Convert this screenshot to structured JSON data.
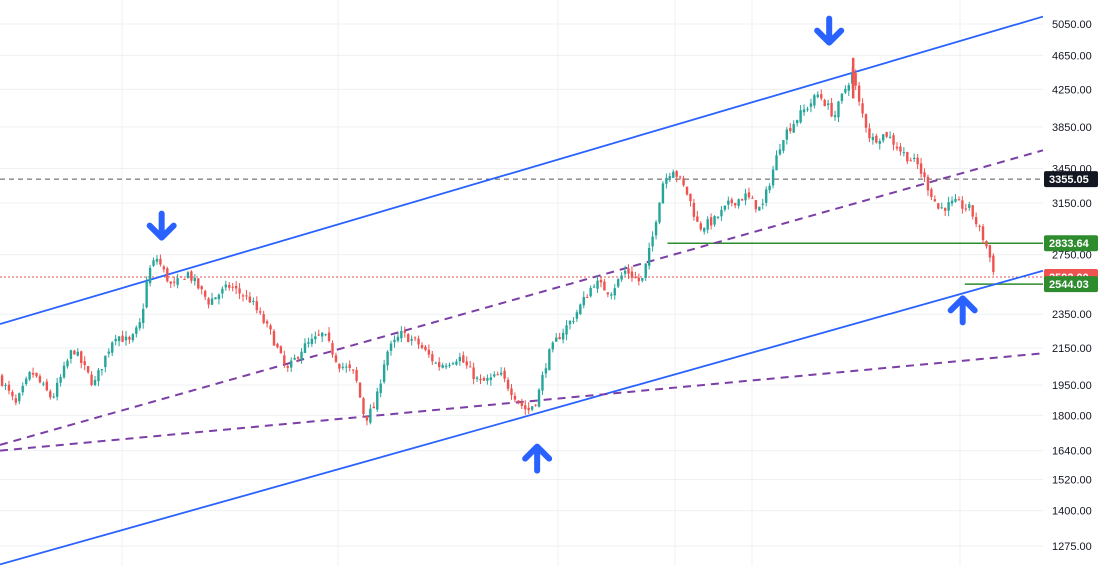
{
  "chart_data": {
    "type": "candlestick",
    "title": "",
    "xlabel": "",
    "ylabel": "",
    "y_scale": "log",
    "ylim": [
      1210,
      5380
    ],
    "grid": true,
    "x": [
      0,
      100
    ],
    "y_ticks": [
      5050,
      4650,
      4250,
      3850,
      3450,
      3150,
      2750,
      2350,
      2150,
      1950,
      1800,
      1640,
      1520,
      1400,
      1275
    ],
    "y_tick_labels": [
      "5050.00",
      "4650.00",
      "4250.00",
      "3850.00",
      "3450.00",
      "3150.00",
      "2750.00",
      "2350.00",
      "2150.00",
      "1950.00",
      "1800.00",
      "1640.00",
      "1520.00",
      "1400.00",
      "1275.00"
    ],
    "price_path": [
      [
        0,
        1990
      ],
      [
        1.5,
        1850
      ],
      [
        3,
        2020
      ],
      [
        5,
        1880
      ],
      [
        7,
        2150
      ],
      [
        9,
        1950
      ],
      [
        11,
        2230
      ],
      [
        12.5,
        2180
      ],
      [
        13.5,
        2300
      ],
      [
        14.2,
        2620
      ],
      [
        15,
        2730
      ],
      [
        16.5,
        2520
      ],
      [
        18,
        2620
      ],
      [
        20,
        2430
      ],
      [
        22,
        2530
      ],
      [
        24,
        2440
      ],
      [
        26,
        2230
      ],
      [
        27.5,
        2020
      ],
      [
        29,
        2150
      ],
      [
        31,
        2230
      ],
      [
        32.5,
        2060
      ],
      [
        34,
        2010
      ],
      [
        35,
        1780
      ],
      [
        36,
        1850
      ],
      [
        37,
        2120
      ],
      [
        38.5,
        2230
      ],
      [
        40,
        2180
      ],
      [
        42,
        2050
      ],
      [
        44,
        2100
      ],
      [
        46,
        1960
      ],
      [
        48,
        2000
      ],
      [
        50,
        1850
      ],
      [
        50.6,
        1820
      ],
      [
        51.5,
        1880
      ],
      [
        52.5,
        2100
      ],
      [
        53.5,
        2210
      ],
      [
        55,
        2330
      ],
      [
        57,
        2560
      ],
      [
        58.5,
        2490
      ],
      [
        60,
        2640
      ],
      [
        61.5,
        2550
      ],
      [
        62.5,
        2850
      ],
      [
        63.5,
        3320
      ],
      [
        64.5,
        3460
      ],
      [
        66,
        3210
      ],
      [
        67,
        2950
      ],
      [
        68.5,
        3010
      ],
      [
        70,
        3150
      ],
      [
        71.5,
        3210
      ],
      [
        73,
        3090
      ],
      [
        74,
        3400
      ],
      [
        75,
        3750
      ],
      [
        76.5,
        3950
      ],
      [
        78.5,
        4200
      ],
      [
        80,
        3960
      ],
      [
        81,
        4250
      ],
      [
        81.8,
        4450
      ],
      [
        82.2,
        4150
      ],
      [
        83.5,
        3720
      ],
      [
        85,
        3780
      ],
      [
        86.5,
        3600
      ],
      [
        88,
        3480
      ],
      [
        90,
        3100
      ],
      [
        91.5,
        3150
      ],
      [
        93,
        3100
      ],
      [
        94.5,
        2830
      ],
      [
        95.5,
        2590
      ]
    ],
    "series": [
      {
        "name": "",
        "style": "solid",
        "color": "#2962ff",
        "points": [
          [
            0,
            2290
          ],
          [
            100,
            5150
          ]
        ]
      },
      {
        "name": "",
        "style": "solid",
        "color": "#2962ff",
        "points": [
          [
            0,
            1215
          ],
          [
            100,
            2635
          ]
        ]
      },
      {
        "name": "",
        "style": "dashed",
        "color": "#7b3fa6",
        "points": [
          [
            0,
            1665
          ],
          [
            100,
            3620
          ]
        ]
      },
      {
        "name": "",
        "style": "dashed",
        "color": "#7b3fa6",
        "points": [
          [
            0,
            1640
          ],
          [
            100,
            2120
          ]
        ]
      }
    ],
    "horizontal_levels": [
      {
        "value": 3355.05,
        "style": "dashed",
        "color": "#555555",
        "tag": "3355.05",
        "tag_color": "#131722"
      },
      {
        "value": 2833.64,
        "style": "solid",
        "color": "#2e8b2e",
        "from_x": 64.0,
        "tag": "2833.64",
        "tag_color": "#2e8b2e"
      },
      {
        "value": 2592.0,
        "style": "dotted",
        "color": "#e05050",
        "tag": "2592.00",
        "tag_color": "#ef5350"
      },
      {
        "value": 2544.03,
        "style": "solid",
        "color": "#2e8b2e",
        "from_x": 92.5,
        "tag": "2544.03",
        "tag_color": "#2e8b2e"
      }
    ],
    "annotations": [
      {
        "type": "arrow-down",
        "x": 15.5,
        "value": 2960,
        "color": "#2962ff"
      },
      {
        "type": "arrow-up",
        "x": 51.5,
        "value": 1610,
        "color": "#2962ff"
      },
      {
        "type": "arrow-down",
        "x": 79.5,
        "value": 4950,
        "color": "#2962ff"
      },
      {
        "type": "arrow-up",
        "x": 92.3,
        "value": 2380,
        "color": "#2962ff"
      }
    ],
    "colors": {
      "up": "#26a69a",
      "down": "#ef5350",
      "grid": "#eef0f3",
      "text": "#131722"
    }
  }
}
